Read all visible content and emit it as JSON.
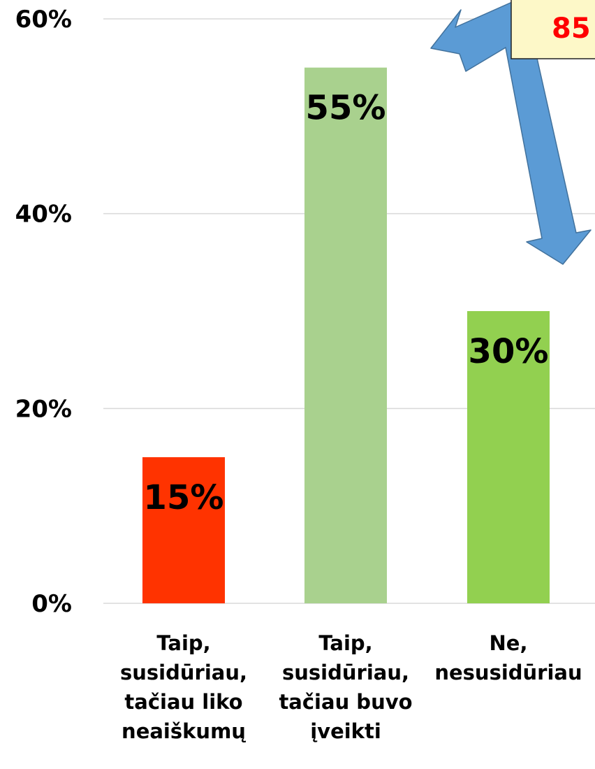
{
  "chart_data": {
    "type": "bar",
    "categories": [
      "Taip, susidūriau, tačiau liko neaiškumų",
      "Taip, susidūriau, tačiau buvo įveikti",
      "Ne, nesusidūriau"
    ],
    "category_label_lines": [
      [
        "Taip,",
        "susidūriau,",
        "tačiau liko",
        "neaiškumų"
      ],
      [
        "Taip,",
        "susidūriau,",
        "tačiau buvo",
        "įveikti"
      ],
      [
        "Ne,",
        "nesusidūriau"
      ]
    ],
    "values": [
      15,
      55,
      30
    ],
    "data_labels": [
      "15%",
      "55%",
      "30%"
    ],
    "ylim": [
      0,
      60
    ],
    "y_ticks": [
      0,
      20,
      40,
      60
    ],
    "y_tick_labels": [
      "0%",
      "20%",
      "40%",
      "60%"
    ],
    "grid": true,
    "bar_colors": [
      "#ff3300",
      "#a9d18e",
      "#92d050"
    ],
    "annotation": {
      "text": "85",
      "text_color": "#ff0000",
      "box_color": "#fdf8c8",
      "arrow_color": "#5b9bd5"
    }
  }
}
